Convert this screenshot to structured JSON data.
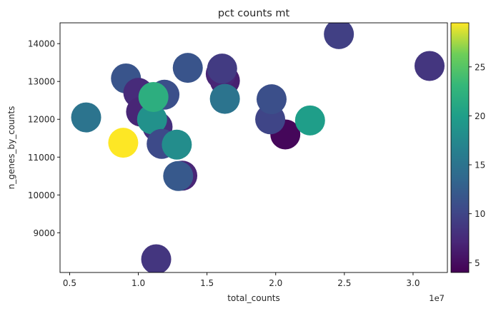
{
  "chart_data": {
    "type": "scatter",
    "title": "pct counts mt",
    "xlabel": "total_counts",
    "ylabel": "n_genes_by_counts",
    "x_offset_label": "1e7",
    "x_unit_multiplier": 10000000,
    "xlim": [
      0.43,
      3.25
    ],
    "ylim": [
      7950,
      14550
    ],
    "xticks": [
      0.5,
      1.0,
      1.5,
      2.0,
      2.5,
      3.0
    ],
    "xtick_labels": [
      "0.5",
      "1.0",
      "1.5",
      "2.0",
      "2.5",
      "3.0"
    ],
    "yticks": [
      9000,
      10000,
      11000,
      12000,
      13000,
      14000
    ],
    "ytick_labels": [
      "9000",
      "10000",
      "11000",
      "12000",
      "13000",
      "14000"
    ],
    "grid": false,
    "colorbar": {
      "colormap": "viridis",
      "range": [
        4,
        29.5
      ],
      "ticks": [
        5,
        10,
        15,
        20,
        25
      ],
      "tick_labels": [
        "5",
        "10",
        "15",
        "20",
        "25"
      ]
    },
    "color_variable": "pct_counts_mt",
    "points": [
      {
        "x": 0.62,
        "y": 12050,
        "c": 15.0
      },
      {
        "x": 0.89,
        "y": 11380,
        "c": 29.5
      },
      {
        "x": 0.91,
        "y": 13080,
        "c": 11.5
      },
      {
        "x": 1.0,
        "y": 12700,
        "c": 7.5
      },
      {
        "x": 1.02,
        "y": 12200,
        "c": 7.0
      },
      {
        "x": 1.14,
        "y": 11800,
        "c": 8.0
      },
      {
        "x": 1.19,
        "y": 12650,
        "c": 11.0
      },
      {
        "x": 1.1,
        "y": 12000,
        "c": 18.5
      },
      {
        "x": 1.11,
        "y": 12590,
        "c": 22.0
      },
      {
        "x": 1.17,
        "y": 11350,
        "c": 10.5
      },
      {
        "x": 1.13,
        "y": 8300,
        "c": 8.5
      },
      {
        "x": 1.32,
        "y": 10510,
        "c": 7.0
      },
      {
        "x": 1.29,
        "y": 10500,
        "c": 12.0
      },
      {
        "x": 1.28,
        "y": 11330,
        "c": 18.0
      },
      {
        "x": 1.36,
        "y": 13360,
        "c": 11.5
      },
      {
        "x": 1.63,
        "y": 13020,
        "c": 6.5
      },
      {
        "x": 1.6,
        "y": 13200,
        "c": 7.0
      },
      {
        "x": 1.61,
        "y": 13340,
        "c": 9.0
      },
      {
        "x": 1.63,
        "y": 12540,
        "c": 15.0
      },
      {
        "x": 2.07,
        "y": 11600,
        "c": 4.5
      },
      {
        "x": 1.96,
        "y": 12000,
        "c": 10.0
      },
      {
        "x": 1.97,
        "y": 12530,
        "c": 11.0
      },
      {
        "x": 2.25,
        "y": 11970,
        "c": 20.0
      },
      {
        "x": 2.46,
        "y": 14250,
        "c": 9.5
      },
      {
        "x": 3.12,
        "y": 13410,
        "c": 8.5
      }
    ]
  }
}
